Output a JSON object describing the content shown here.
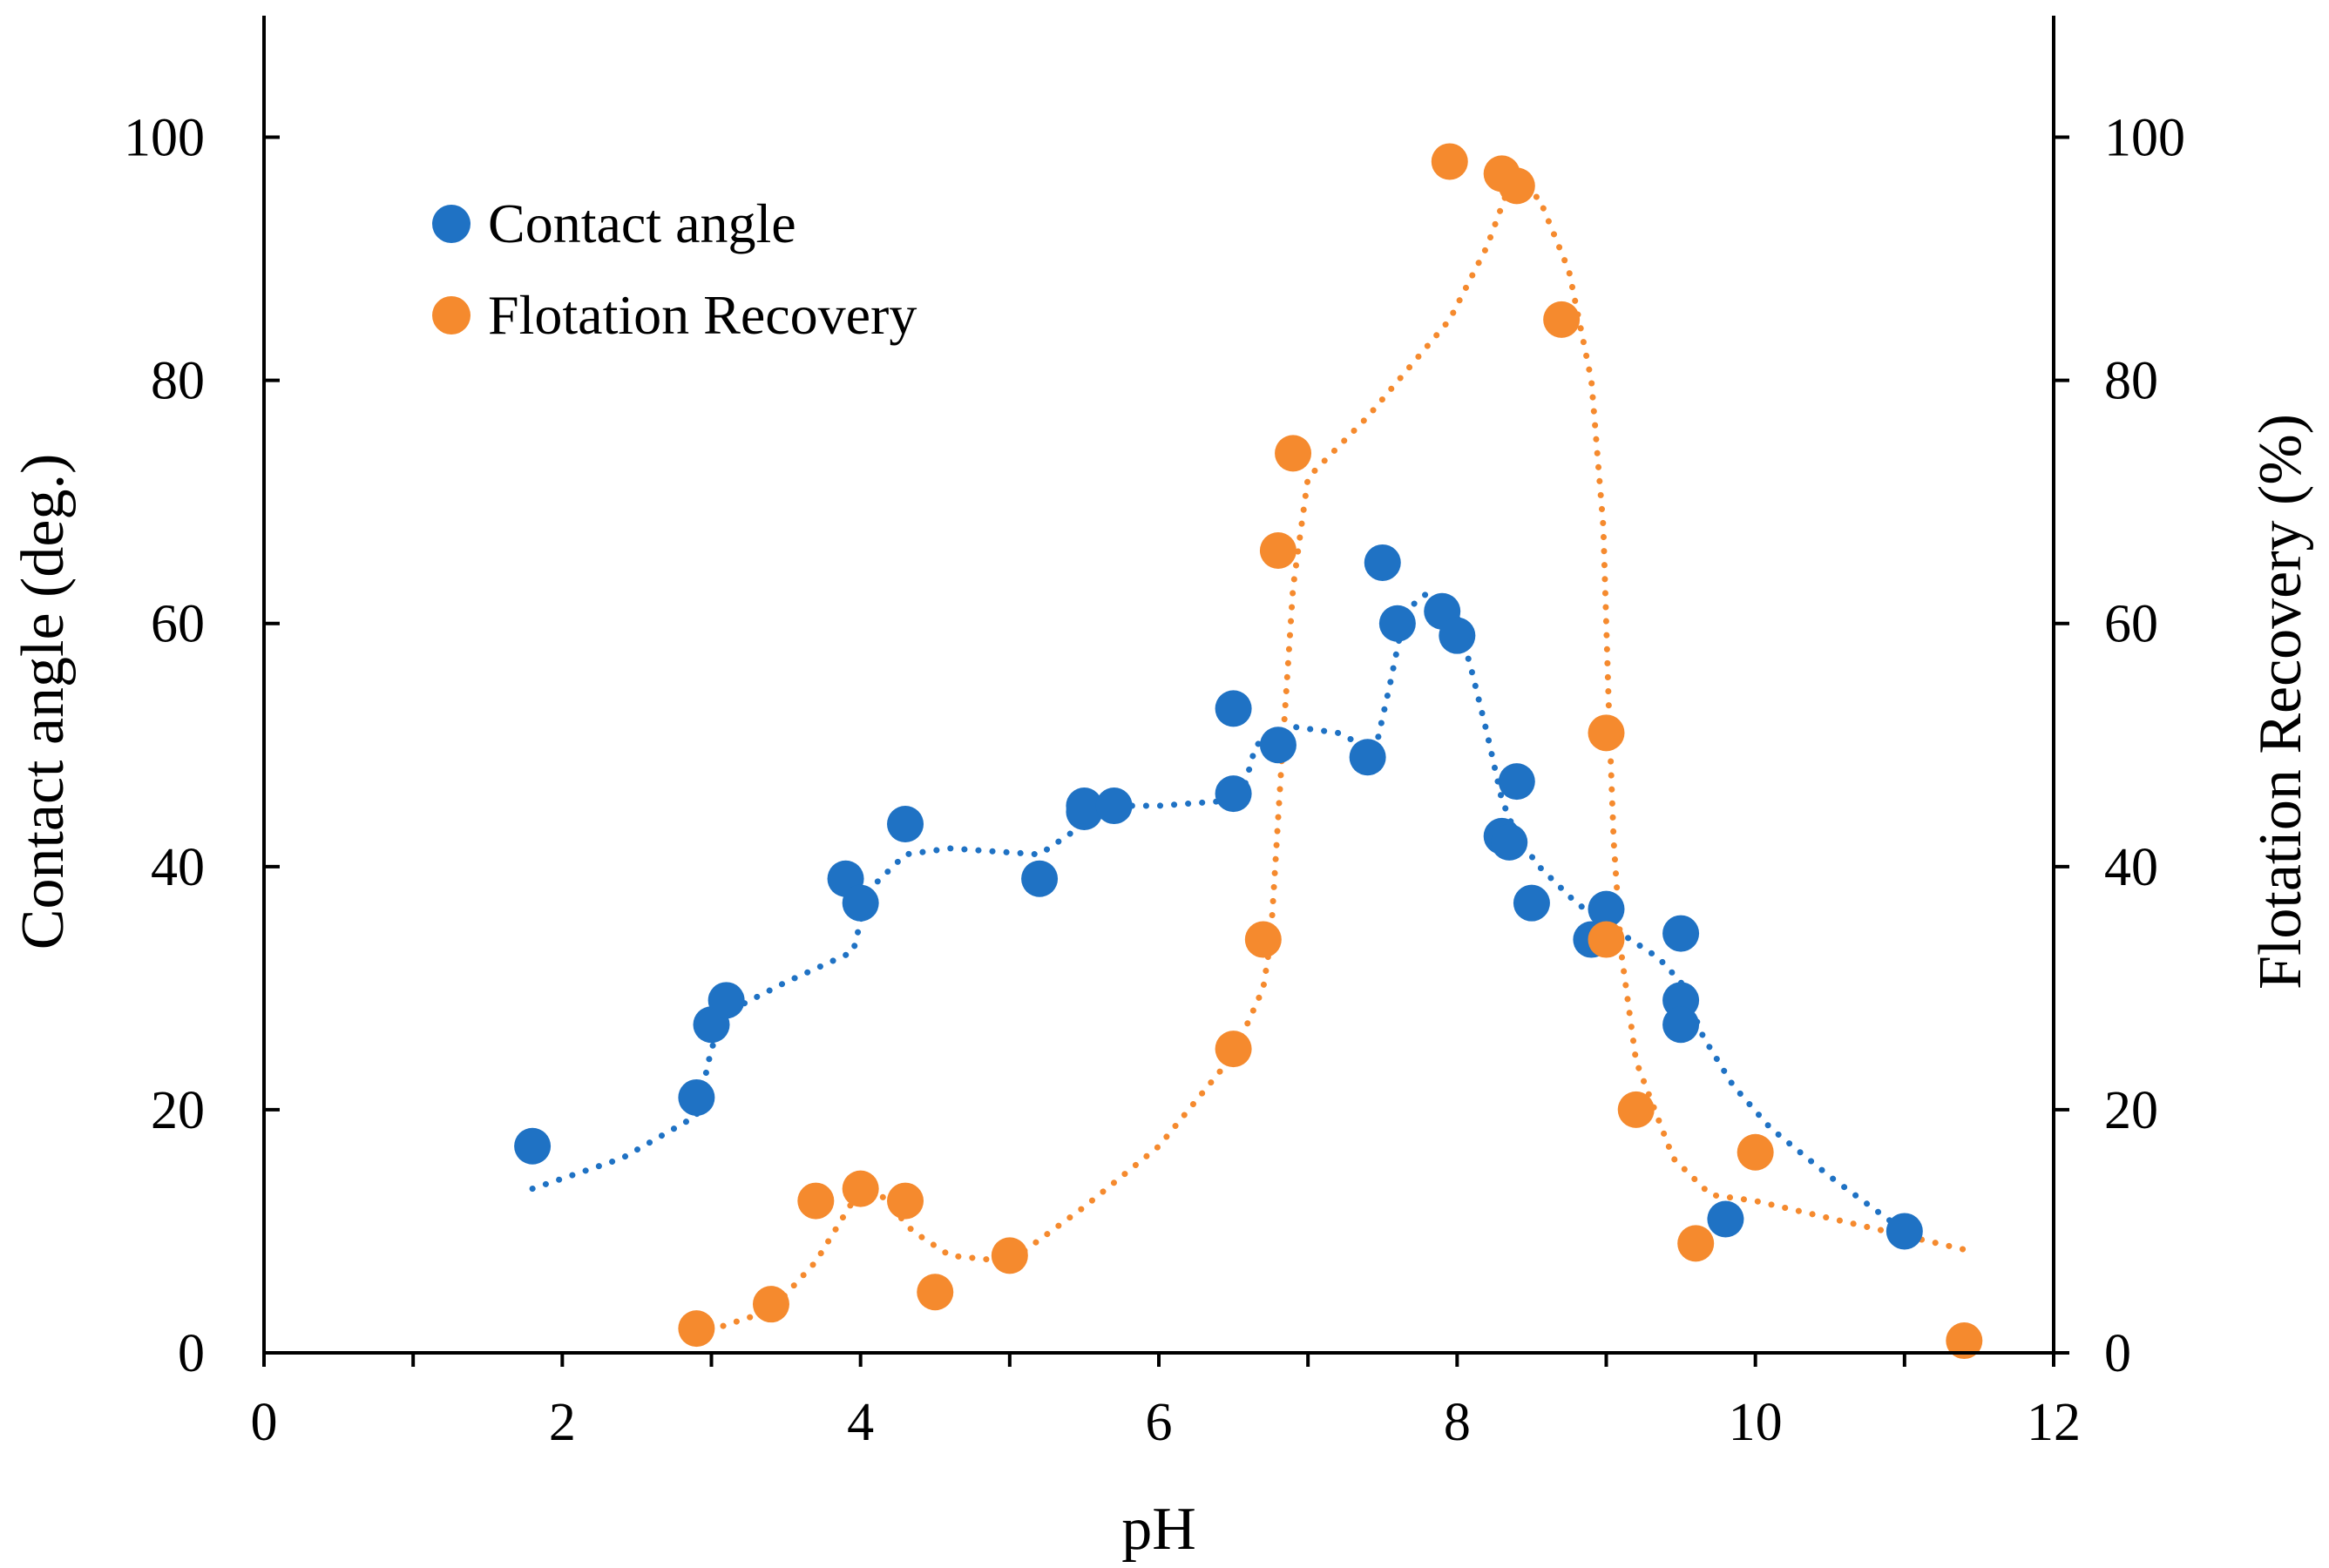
{
  "colors": {
    "contact": "#1f72c4",
    "flotation": "#f58a2e",
    "axis": "#000000"
  },
  "chart_data": {
    "type": "scatter",
    "xlabel": "pH",
    "ylabel": "Contact angle (deg.)",
    "y2label": "Flotation Recovery (%)",
    "xlim": [
      0,
      12
    ],
    "ylim": [
      0,
      110
    ],
    "y2lim": [
      0,
      110
    ],
    "x_ticks": [
      0,
      2,
      4,
      6,
      8,
      10,
      12
    ],
    "y_ticks": [
      0,
      20,
      40,
      60,
      80,
      100
    ],
    "y2_ticks": [
      0,
      20,
      40,
      60,
      80,
      100
    ],
    "legend_position": "top-left",
    "series": [
      {
        "name": "Contact angle",
        "axis": "left",
        "points": [
          [
            1.8,
            17
          ],
          [
            2.9,
            21
          ],
          [
            3.0,
            27
          ],
          [
            3.1,
            29
          ],
          [
            3.9,
            39
          ],
          [
            4.0,
            37
          ],
          [
            4.3,
            43.5
          ],
          [
            5.2,
            39
          ],
          [
            5.5,
            44.5
          ],
          [
            5.5,
            45
          ],
          [
            5.7,
            45
          ],
          [
            6.5,
            46
          ],
          [
            6.5,
            53
          ],
          [
            6.8,
            50
          ],
          [
            7.4,
            49
          ],
          [
            7.5,
            65
          ],
          [
            7.6,
            60
          ],
          [
            7.9,
            61
          ],
          [
            8.0,
            59
          ],
          [
            8.3,
            42.5
          ],
          [
            8.35,
            42
          ],
          [
            8.4,
            47
          ],
          [
            8.5,
            37
          ],
          [
            8.9,
            34
          ],
          [
            9.0,
            36.5
          ],
          [
            9.5,
            34.5
          ],
          [
            9.5,
            29
          ],
          [
            9.5,
            27
          ],
          [
            9.8,
            11
          ],
          [
            11.0,
            10
          ]
        ],
        "trend": [
          [
            1.8,
            13.5
          ],
          [
            2.4,
            16
          ],
          [
            2.9,
            19.5
          ],
          [
            3.0,
            25
          ],
          [
            3.1,
            28
          ],
          [
            3.5,
            30.5
          ],
          [
            3.95,
            33
          ],
          [
            4.05,
            38
          ],
          [
            4.3,
            41
          ],
          [
            4.6,
            41.5
          ],
          [
            5.2,
            41
          ],
          [
            5.5,
            43.5
          ],
          [
            5.7,
            45
          ],
          [
            6.0,
            45
          ],
          [
            6.55,
            45.5
          ],
          [
            6.65,
            50
          ],
          [
            6.9,
            51.5
          ],
          [
            7.2,
            51
          ],
          [
            7.45,
            49.5
          ],
          [
            7.55,
            55
          ],
          [
            7.65,
            61
          ],
          [
            7.8,
            62.5
          ],
          [
            8.0,
            60.5
          ],
          [
            8.1,
            56
          ],
          [
            8.2,
            51
          ],
          [
            8.3,
            45.5
          ],
          [
            8.4,
            42.5
          ],
          [
            8.55,
            40
          ],
          [
            8.8,
            37
          ],
          [
            9.1,
            34.5
          ],
          [
            9.35,
            32.5
          ],
          [
            9.5,
            30.5
          ],
          [
            9.65,
            26
          ],
          [
            9.85,
            22
          ],
          [
            10.1,
            18.5
          ],
          [
            10.5,
            14.5
          ],
          [
            11.0,
            10
          ]
        ]
      },
      {
        "name": "Flotation Recovery",
        "axis": "right",
        "points": [
          [
            2.9,
            2
          ],
          [
            3.4,
            4
          ],
          [
            3.7,
            12.5
          ],
          [
            4.0,
            13.5
          ],
          [
            4.3,
            12.5
          ],
          [
            4.5,
            5
          ],
          [
            5.0,
            8
          ],
          [
            6.5,
            25
          ],
          [
            6.7,
            34
          ],
          [
            6.8,
            66
          ],
          [
            6.9,
            74
          ],
          [
            7.95,
            98
          ],
          [
            8.3,
            97
          ],
          [
            8.4,
            96
          ],
          [
            8.7,
            85
          ],
          [
            9.0,
            51
          ],
          [
            9.0,
            34
          ],
          [
            9.2,
            20
          ],
          [
            9.6,
            9
          ],
          [
            10.0,
            16.5
          ],
          [
            11.4,
            1
          ]
        ],
        "trend": [
          [
            2.9,
            1.5
          ],
          [
            3.4,
            3.5
          ],
          [
            3.7,
            7.5
          ],
          [
            3.95,
            12.5
          ],
          [
            4.1,
            13.5
          ],
          [
            4.35,
            10
          ],
          [
            4.6,
            8
          ],
          [
            5.0,
            7.5
          ],
          [
            5.5,
            12
          ],
          [
            6.0,
            17
          ],
          [
            6.5,
            24.5
          ],
          [
            6.7,
            30
          ],
          [
            6.75,
            34
          ],
          [
            6.82,
            48
          ],
          [
            6.9,
            63
          ],
          [
            7.0,
            72
          ],
          [
            7.4,
            77
          ],
          [
            7.95,
            85
          ],
          [
            8.2,
            91
          ],
          [
            8.35,
            96
          ],
          [
            8.55,
            95
          ],
          [
            8.75,
            89
          ],
          [
            8.9,
            80
          ],
          [
            8.98,
            68
          ],
          [
            9.02,
            52
          ],
          [
            9.05,
            42
          ],
          [
            9.1,
            33
          ],
          [
            9.2,
            24
          ],
          [
            9.45,
            16
          ],
          [
            9.7,
            13
          ],
          [
            10.0,
            12.5
          ],
          [
            10.7,
            10.5
          ],
          [
            11.4,
            8.5
          ]
        ]
      }
    ]
  }
}
